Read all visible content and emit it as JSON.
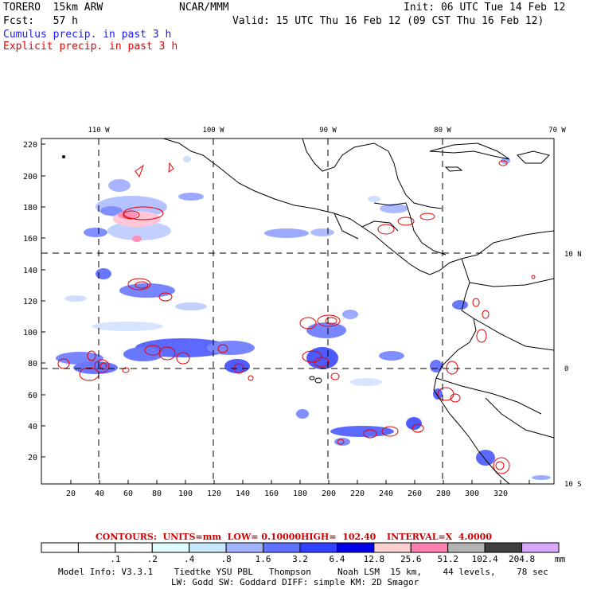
{
  "header": {
    "model": "TORERO  15km ARW",
    "org": "NCAR/MMM",
    "init": "Init: 06 UTC Tue 14 Feb 12",
    "fcst": "Fcst:   57 h",
    "valid": "Valid: 15 UTC Thu 16 Feb 12 (09 CST Thu 16 Feb 12)",
    "cumulus": "Cumulus precip. in past 3 h",
    "explicit": "Explicit precip. in past 3 h"
  },
  "map": {
    "lon_labels": [
      "110 W",
      "100 W",
      "90 W",
      "80 W",
      "70 W"
    ],
    "lat_labels": [
      "10 N",
      "0",
      "10 S"
    ],
    "y_ticks": [
      "220",
      "200",
      "180",
      "160",
      "140",
      "120",
      "100",
      "80",
      "60",
      "40",
      "20"
    ],
    "x_ticks": [
      "20",
      "40",
      "60",
      "80",
      "100",
      "120",
      "140",
      "160",
      "180",
      "200",
      "220",
      "240",
      "260",
      "280",
      "300",
      "320"
    ]
  },
  "contour_info": {
    "label": "CONTOURS:  UNITS=mm  LOW= 0.10000",
    "high": "HIGH=  102.40",
    "interval": "INTERVAL=X  4.0000"
  },
  "colorbar": {
    "labels": [
      ".1",
      ".2",
      ".4",
      ".8",
      "1.6",
      "3.2",
      "6.4",
      "12.8",
      "25.6",
      "51.2",
      "102.4",
      "204.8"
    ],
    "unit": "mm",
    "colors": [
      "#ffffff",
      "#ffffff",
      "#ffffff",
      "#e0ffff",
      "#c8e8ff",
      "#a0b4ff",
      "#6070ff",
      "#3040ff",
      "#0000e6",
      "#ffd0d0",
      "#ff80b0",
      "#b4b4b4",
      "#404040",
      "#d8a8ff"
    ]
  },
  "footer": {
    "line1": "Model Info: V3.3.1    Tiedtke YSU PBL   Thompson     Noah LSM  15 km,    44 levels,    78 sec",
    "line2": "LW: Godd SW: Goddard DIFF: simple KM: 2D Smagor"
  }
}
